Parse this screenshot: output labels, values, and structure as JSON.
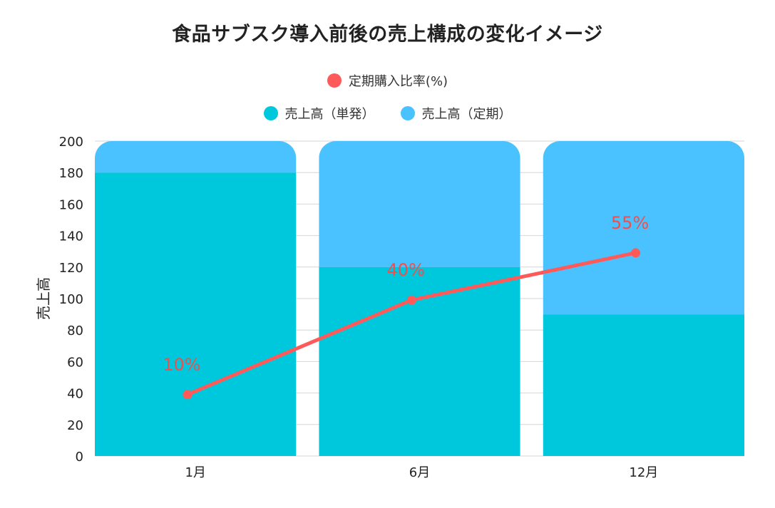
{
  "chart_data": {
    "type": "bar",
    "title": "食品サブスク導入前後の売上構成の変化イメージ",
    "categories": [
      "1月",
      "6月",
      "12月"
    ],
    "stacked": true,
    "ylabel": "売上高",
    "ylim": [
      0,
      200
    ],
    "yticks": [
      "0",
      "20",
      "40",
      "60",
      "80",
      "100",
      "120",
      "140",
      "160",
      "180",
      "200"
    ],
    "grid": true,
    "legend_position": "top-center",
    "series": [
      {
        "name": "売上高（単発）",
        "type": "bar",
        "color": "#00c8dc",
        "values": [
          180,
          120,
          90
        ]
      },
      {
        "name": "売上高（定期）",
        "type": "bar",
        "color": "#4ac2ff",
        "values": [
          20,
          80,
          110
        ]
      },
      {
        "name": "定期購入比率(%)",
        "type": "line",
        "color": "#ff5a5a",
        "values": [
          10,
          40,
          55
        ],
        "plotted_on_sales_axis": [
          39,
          99,
          129
        ],
        "labels": [
          "10%",
          "40%",
          "55%"
        ]
      }
    ]
  }
}
